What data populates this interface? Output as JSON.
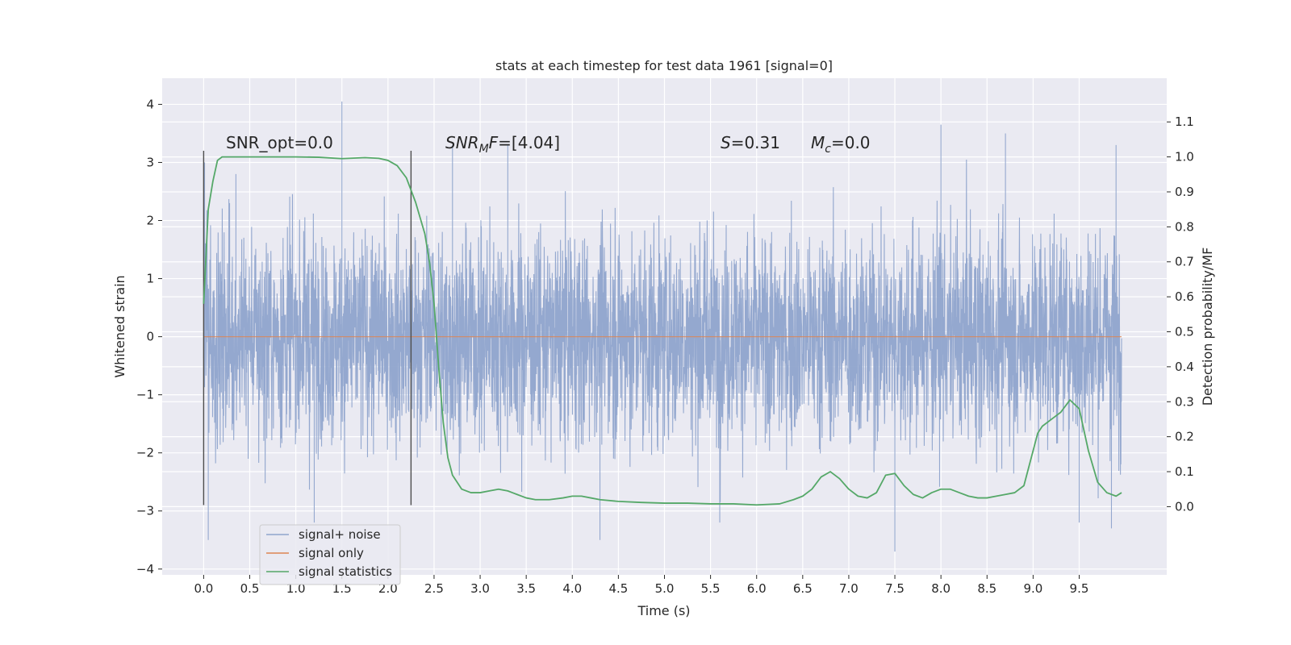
{
  "chart_data": {
    "type": "line",
    "title": "stats at each timestep for test data 1961 [signal=0]",
    "xlabel": "Time (s)",
    "ylabel_left": "Whitened strain",
    "ylabel_right": "Detection probability/MF",
    "xlim": [
      -0.45,
      10.45
    ],
    "ylim_left": [
      -4.1,
      4.45
    ],
    "ylim_right": [
      -0.195,
      1.225
    ],
    "x_ticks": [
      "0.0",
      "0.5",
      "1.0",
      "1.5",
      "2.0",
      "2.5",
      "3.0",
      "3.5",
      "4.0",
      "4.5",
      "5.0",
      "5.5",
      "6.0",
      "6.5",
      "7.0",
      "7.5",
      "8.0",
      "8.5",
      "9.0",
      "9.5"
    ],
    "y_ticks_left": [
      "4",
      "3",
      "2",
      "1",
      "0",
      "−1",
      "−2",
      "−3",
      "−4"
    ],
    "y_ticks_right": [
      "1.1",
      "1.0",
      "0.9",
      "0.8",
      "0.7",
      "0.6",
      "0.5",
      "0.4",
      "0.3",
      "0.2",
      "0.1",
      "0.0"
    ],
    "grid": true,
    "legend_position": "lower-left",
    "annotations": {
      "snr_opt": "SNR_opt=0.0",
      "snr_mf_italic": "SNR",
      "snr_mf_sub": "M",
      "snr_mf_italic2": "F",
      "snr_mf_value": "=[4.04]",
      "s_italic": "S",
      "s_value": "=0.31",
      "mc_italic": "M",
      "mc_sub": "c",
      "mc_value": "=0.0"
    },
    "vertical_markers": [
      {
        "x": 0.0,
        "ymin": -2.9,
        "ymax": 3.2
      },
      {
        "x": 2.25,
        "ymin": -2.9,
        "ymax": 3.2
      }
    ],
    "noise_range": {
      "x_start": 0.0,
      "x_end": 9.96,
      "dense_band": [
        -1.1,
        1.4
      ],
      "min": -3.7,
      "max": 4.05
    },
    "series": [
      {
        "name": "signal+ noise",
        "color": "#8fa4cc",
        "axis": "left",
        "peaks": [
          {
            "x": 0.01,
            "y": 3.0
          },
          {
            "x": 0.05,
            "y": -3.5
          },
          {
            "x": 0.35,
            "y": 2.8
          },
          {
            "x": 1.5,
            "y": 4.05
          },
          {
            "x": 1.2,
            "y": -3.2
          },
          {
            "x": 2.7,
            "y": 3.3
          },
          {
            "x": 3.3,
            "y": 3.3
          },
          {
            "x": 4.3,
            "y": -3.5
          },
          {
            "x": 5.6,
            "y": -3.2
          },
          {
            "x": 7.5,
            "y": -3.7
          },
          {
            "x": 8.0,
            "y": 3.65
          },
          {
            "x": 8.7,
            "y": 3.5
          },
          {
            "x": 9.5,
            "y": -3.2
          },
          {
            "x": 9.85,
            "y": -3.3
          },
          {
            "x": 9.9,
            "y": 3.3
          }
        ]
      },
      {
        "name": "signal only",
        "color": "#dd8452",
        "axis": "left",
        "x": [
          0.0,
          9.96
        ],
        "y": [
          0.0,
          0.0
        ]
      },
      {
        "name": "signal statistics",
        "color": "#55a868",
        "axis": "right",
        "x": [
          0.0,
          0.05,
          0.1,
          0.15,
          0.2,
          0.3,
          0.5,
          0.75,
          1.0,
          1.25,
          1.5,
          1.75,
          1.9,
          2.0,
          2.1,
          2.2,
          2.3,
          2.4,
          2.45,
          2.5,
          2.55,
          2.6,
          2.65,
          2.7,
          2.75,
          2.8,
          2.9,
          3.0,
          3.1,
          3.2,
          3.3,
          3.4,
          3.5,
          3.6,
          3.75,
          3.9,
          4.0,
          4.1,
          4.2,
          4.3,
          4.5,
          4.75,
          5.0,
          5.25,
          5.5,
          5.75,
          6.0,
          6.25,
          6.4,
          6.5,
          6.6,
          6.7,
          6.8,
          6.9,
          7.0,
          7.1,
          7.2,
          7.3,
          7.4,
          7.5,
          7.6,
          7.7,
          7.8,
          7.9,
          8.0,
          8.1,
          8.2,
          8.3,
          8.4,
          8.5,
          8.6,
          8.7,
          8.8,
          8.9,
          9.0,
          9.05,
          9.1,
          9.2,
          9.3,
          9.4,
          9.5,
          9.6,
          9.7,
          9.8,
          9.9,
          9.96
        ],
        "y": [
          0.58,
          0.85,
          0.93,
          0.99,
          1.0,
          1.0,
          1.0,
          1.0,
          1.0,
          0.999,
          0.995,
          0.998,
          0.996,
          0.99,
          0.975,
          0.94,
          0.87,
          0.78,
          0.7,
          0.58,
          0.4,
          0.24,
          0.14,
          0.09,
          0.07,
          0.05,
          0.04,
          0.04,
          0.045,
          0.05,
          0.045,
          0.035,
          0.025,
          0.02,
          0.02,
          0.025,
          0.03,
          0.03,
          0.025,
          0.02,
          0.015,
          0.012,
          0.01,
          0.01,
          0.008,
          0.008,
          0.005,
          0.008,
          0.02,
          0.03,
          0.05,
          0.085,
          0.1,
          0.08,
          0.05,
          0.03,
          0.025,
          0.04,
          0.09,
          0.095,
          0.06,
          0.035,
          0.025,
          0.04,
          0.05,
          0.05,
          0.04,
          0.03,
          0.025,
          0.025,
          0.03,
          0.035,
          0.04,
          0.06,
          0.16,
          0.21,
          0.23,
          0.25,
          0.27,
          0.305,
          0.28,
          0.16,
          0.07,
          0.04,
          0.03,
          0.04
        ]
      }
    ]
  }
}
